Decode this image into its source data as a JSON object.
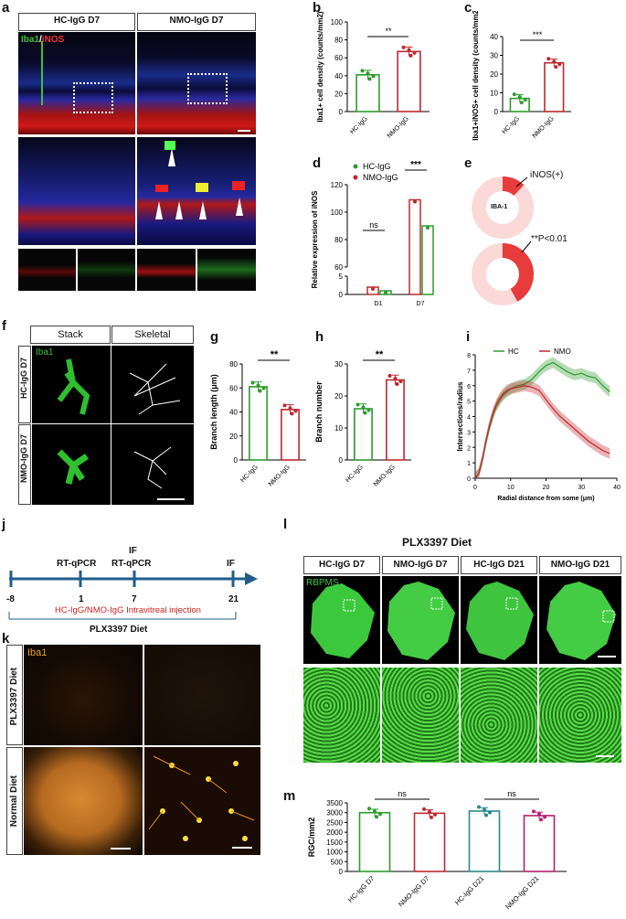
{
  "panel_labels": {
    "a": "a",
    "b": "b",
    "c": "c",
    "d": "d",
    "e": "e",
    "f": "f",
    "g": "g",
    "h": "h",
    "i": "i",
    "j": "j",
    "k": "k",
    "l": "l",
    "m": "m"
  },
  "panel_a": {
    "col1": "HC-IgG D7",
    "col2": "NMO-IgG D7",
    "stain1": "Iba1",
    "sep": "/",
    "stain2": "iNOS"
  },
  "panel_f": {
    "col1": "Stack",
    "col2": "Skeletal",
    "stain": "Iba1",
    "row1": "HC-IgG D7",
    "row2": "NMO-IgG D7"
  },
  "panel_e": {
    "legend": "iNOS(+)",
    "center": "IBA-1",
    "pval": "**P<0.01"
  },
  "panel_j": {
    "ticks": [
      "-8",
      "1",
      "7",
      "21"
    ],
    "events_top": [
      "RT-qPCR",
      "IF",
      "RT-qPCR",
      "IF"
    ],
    "injection": "HC-IgG/NMO-IgG Intravitreal injection",
    "diet": "PLX3397 Diet"
  },
  "panel_k": {
    "stain": "Iba1",
    "row1": "PLX3397 Diet",
    "row2": "Normal Diet"
  },
  "panel_l": {
    "title": "PLX3397 Diet",
    "stain": "RBPMS",
    "cols": [
      "HC-IgG D7",
      "NMO-IgG D7",
      "HC-IgG D21",
      "NMO-IgG D21"
    ]
  },
  "colors": {
    "hc": "#2e9b2e",
    "nmo": "#c0282d",
    "nmo_d21": "#b5206e",
    "hc_d21": "#2a8a8a",
    "ring_light": "#fbd9d9",
    "ring_dark": "#e83b3b"
  },
  "chart_data": [
    {
      "id": "b",
      "type": "bar",
      "categories": [
        "HC-IgG",
        "NMO-IgG"
      ],
      "values": [
        41,
        67
      ],
      "ylabel": "Iba1+ cell density (counts/mm2)",
      "ylim": [
        0,
        100
      ],
      "yticks": [
        0,
        20,
        40,
        60,
        80,
        100
      ],
      "sig": "**"
    },
    {
      "id": "c",
      "type": "bar",
      "categories": [
        "HC-IgG",
        "NMO-IgG"
      ],
      "values": [
        7,
        26
      ],
      "ylabel": "Iba1+iNOS+ cell density (counts/mm2)",
      "ylim": [
        0,
        40
      ],
      "yticks": [
        0,
        10,
        20,
        30,
        40
      ],
      "sig": "***"
    },
    {
      "id": "d",
      "type": "bar",
      "categories": [
        "D1",
        "D7"
      ],
      "series": [
        {
          "name": "HC-IgG",
          "values": [
            1,
            90
          ]
        },
        {
          "name": "NMO-IgG",
          "values": [
            2,
            109
          ]
        }
      ],
      "ylabel": "Relative expression of iNOS",
      "yticks": [
        0,
        5,
        60,
        80,
        100,
        120
      ],
      "sig": [
        "ns",
        "***"
      ]
    },
    {
      "id": "e",
      "type": "pie",
      "rings": [
        {
          "label": "IBA-1",
          "fraction": 0.12
        },
        {
          "fraction": 0.42
        }
      ]
    },
    {
      "id": "g",
      "type": "bar",
      "categories": [
        "HC-IgG",
        "NMO-IgG"
      ],
      "values": [
        61,
        42
      ],
      "ylabel": "Branch length (μm)",
      "ylim": [
        0,
        80
      ],
      "yticks": [
        0,
        20,
        40,
        60,
        80
      ],
      "sig": "**"
    },
    {
      "id": "h",
      "type": "bar",
      "categories": [
        "HC-IgG",
        "NMO-IgG"
      ],
      "values": [
        16,
        25
      ],
      "ylabel": "Branch number",
      "ylim": [
        0,
        30
      ],
      "yticks": [
        0,
        10,
        20,
        30
      ],
      "sig": "**"
    },
    {
      "id": "i",
      "type": "line",
      "xlabel": "Radial distance from some (μm)",
      "ylabel": "Intersections/radius",
      "xlim": [
        0,
        40
      ],
      "ylim": [
        0,
        8
      ],
      "xticks": [
        0,
        10,
        20,
        30,
        40
      ],
      "yticks": [
        0,
        1,
        2,
        3,
        4,
        5,
        6,
        7,
        8
      ],
      "series": [
        {
          "name": "HC",
          "x": [
            0,
            1,
            2,
            3,
            4,
            5,
            6,
            7,
            8,
            9,
            10,
            12,
            14,
            16,
            18,
            20,
            22,
            24,
            26,
            28,
            30,
            32,
            34,
            36,
            38
          ],
          "y": [
            0,
            0.3,
            1.2,
            2.3,
            3.3,
            4.1,
            4.7,
            5.1,
            5.4,
            5.6,
            5.8,
            6.0,
            6.1,
            6.4,
            6.9,
            7.3,
            7.5,
            7.2,
            6.9,
            6.7,
            6.8,
            6.6,
            6.5,
            6.0,
            5.6
          ]
        },
        {
          "name": "NMO",
          "x": [
            0,
            1,
            2,
            3,
            4,
            5,
            6,
            7,
            8,
            9,
            10,
            12,
            14,
            16,
            18,
            20,
            22,
            24,
            26,
            28,
            30,
            32,
            34,
            36,
            38
          ],
          "y": [
            0,
            0.3,
            1.2,
            2.4,
            3.4,
            4.2,
            4.8,
            5.2,
            5.5,
            5.7,
            5.8,
            5.9,
            6.0,
            5.9,
            5.7,
            5.1,
            4.5,
            4.0,
            3.6,
            3.2,
            2.8,
            2.4,
            2.1,
            1.8,
            1.6
          ]
        }
      ]
    },
    {
      "id": "m",
      "type": "bar",
      "categories": [
        "HC-IgG D7",
        "NMO-IgG D7",
        "HC-IgG D21",
        "NMO-IgG D21"
      ],
      "values": [
        3000,
        2970,
        3080,
        2850
      ],
      "ylabel": "RGC/mm2",
      "ylim": [
        0,
        3500
      ],
      "yticks": [
        0,
        500,
        1000,
        1500,
        2000,
        2500,
        3000,
        3500
      ],
      "sig": [
        "ns",
        "ns"
      ]
    }
  ]
}
